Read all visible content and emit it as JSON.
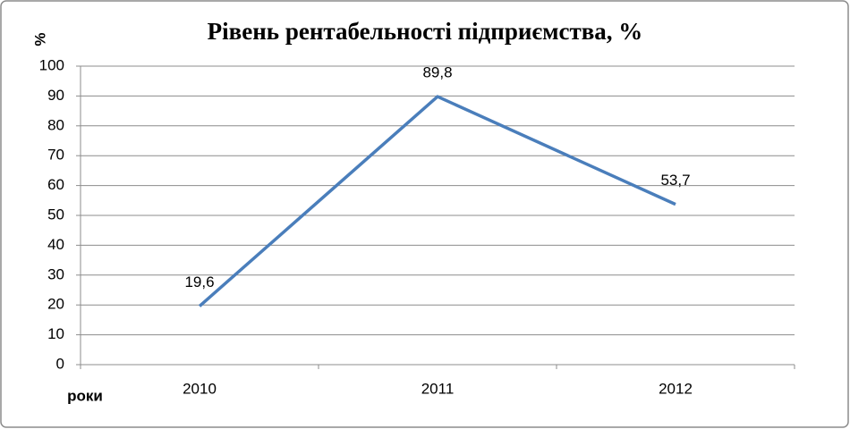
{
  "chart_data": {
    "type": "line",
    "title": "Рівень рентабельності підприємства, %",
    "y_label": "%",
    "x_label": "роки",
    "categories": [
      "2010",
      "2011",
      "2012"
    ],
    "values": [
      19.6,
      89.8,
      53.7
    ],
    "value_labels": [
      "19,6",
      "89,8",
      "53,7"
    ],
    "color": "#4a7ebb",
    "ylim": [
      0,
      100
    ],
    "yticks": [
      0,
      10,
      20,
      30,
      40,
      50,
      60,
      70,
      80,
      90,
      100
    ],
    "grid": true
  }
}
